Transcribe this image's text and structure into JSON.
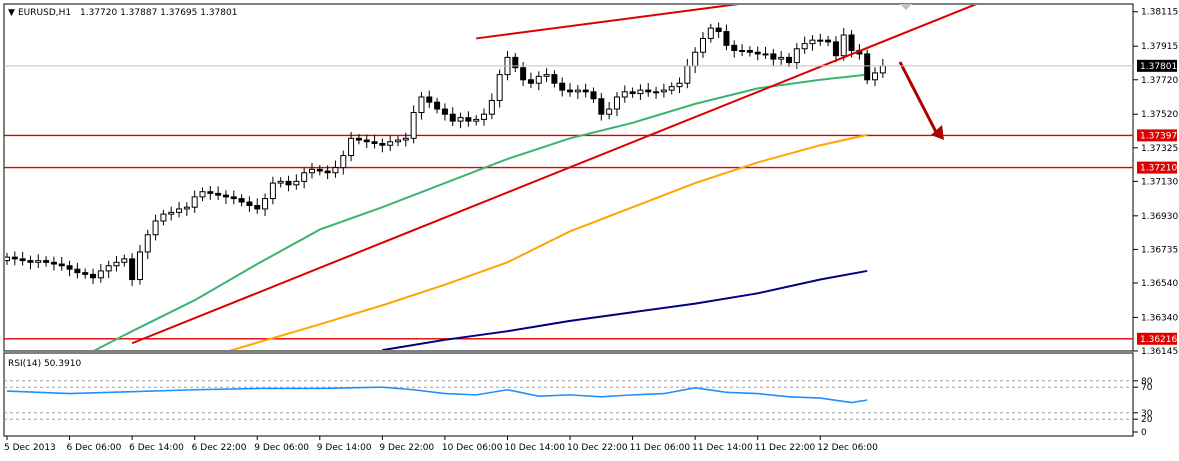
{
  "header": {
    "symbol": "EURUSD,H1",
    "ohlc": "1.37720 1.37887 1.37695 1.37801"
  },
  "rsi_header": "RSI(14) 50.3910",
  "colors": {
    "bull_candle": "#ffffff",
    "bear_candle": "#000000",
    "trendline": "#dd0000",
    "horizontal_level": "#dd0000",
    "ma_fast": "#3cb371",
    "ma_mid": "#ffa500",
    "ma_slow": "#000080",
    "rsi_line": "#1e90ff",
    "arrow": "#aa0000"
  },
  "chart_data": [
    {
      "type": "line",
      "subtype": "candlestick",
      "ylim": [
        1.36145,
        1.3816
      ],
      "ytick_labels": [
        "1.38115",
        "1.37915",
        "1.37720",
        "1.37520",
        "1.37325",
        "1.37130",
        "1.36930",
        "1.36735",
        "1.36540",
        "1.36340",
        "1.36145"
      ],
      "ytick_values": [
        1.38115,
        1.37915,
        1.3772,
        1.3752,
        1.37325,
        1.3713,
        1.3693,
        1.36735,
        1.3654,
        1.3634,
        1.36145
      ],
      "current_price_label": "1.37801",
      "current_price": 1.37801,
      "levels": [
        {
          "label": "1.37397",
          "value": 1.37397
        },
        {
          "label": "1.37210",
          "value": 1.3721
        },
        {
          "label": "1.36216",
          "value": 1.36216
        }
      ],
      "xtick_labels": [
        "5 Dec 2013",
        "6 Dec 06:00",
        "6 Dec 14:00",
        "6 Dec 22:00",
        "9 Dec 06:00",
        "9 Dec 14:00",
        "9 Dec 22:00",
        "10 Dec 06:00",
        "10 Dec 14:00",
        "10 Dec 22:00",
        "11 Dec 06:00",
        "11 Dec 14:00",
        "11 Dec 22:00",
        "12 Dec 06:00"
      ],
      "xtick_index": [
        0,
        8,
        16,
        24,
        32,
        40,
        48,
        56,
        64,
        72,
        80,
        88,
        96,
        104
      ],
      "closes": [
        1.3669,
        1.3668,
        1.3667,
        1.3666,
        1.3667,
        1.3666,
        1.3665,
        1.3664,
        1.3662,
        1.366,
        1.3659,
        1.3657,
        1.3661,
        1.3664,
        1.3666,
        1.3668,
        1.3656,
        1.3672,
        1.3682,
        1.369,
        1.3694,
        1.3695,
        1.3697,
        1.3698,
        1.3704,
        1.3707,
        1.3706,
        1.3705,
        1.3704,
        1.3703,
        1.3701,
        1.3699,
        1.3697,
        1.3703,
        1.3712,
        1.3713,
        1.3711,
        1.3713,
        1.3718,
        1.372,
        1.3719,
        1.3718,
        1.3721,
        1.3728,
        1.3738,
        1.3737,
        1.3736,
        1.3735,
        1.3734,
        1.3736,
        1.3737,
        1.3738,
        1.3753,
        1.3762,
        1.3759,
        1.3755,
        1.3752,
        1.3748,
        1.375,
        1.3748,
        1.3749,
        1.3752,
        1.376,
        1.3775,
        1.3785,
        1.3779,
        1.3772,
        1.377,
        1.3774,
        1.3775,
        1.377,
        1.3766,
        1.3765,
        1.3766,
        1.3765,
        1.3761,
        1.3752,
        1.3755,
        1.3762,
        1.3765,
        1.3764,
        1.3766,
        1.3765,
        1.3765,
        1.3766,
        1.3768,
        1.377,
        1.378,
        1.3788,
        1.3796,
        1.3802,
        1.38,
        1.3792,
        1.3789,
        1.3789,
        1.3788,
        1.3787,
        1.3787,
        1.3784,
        1.3785,
        1.3782,
        1.379,
        1.3793,
        1.3795,
        1.3795,
        1.3794,
        1.3786,
        1.3798,
        1.3789,
        1.3787,
        1.3772,
        1.3776,
        1.378
      ],
      "moving_averages": [
        {
          "color": "#3cb371",
          "x_index": [
            0,
            10,
            16,
            24,
            32,
            40,
            48,
            56,
            64,
            72,
            80,
            88,
            96,
            104,
            110
          ],
          "values": [
            1.3605,
            1.3612,
            1.3626,
            1.3644,
            1.3665,
            1.3685,
            1.3698,
            1.3712,
            1.3726,
            1.3738,
            1.3747,
            1.3758,
            1.3767,
            1.3772,
            1.3775
          ]
        },
        {
          "color": "#ffa500",
          "x_index": [
            28,
            40,
            48,
            56,
            64,
            72,
            80,
            88,
            96,
            104,
            110
          ],
          "values": [
            1.3614,
            1.363,
            1.3641,
            1.3653,
            1.3666,
            1.3684,
            1.3698,
            1.3712,
            1.3724,
            1.3734,
            1.374
          ]
        },
        {
          "color": "#000080",
          "x_index": [
            48,
            56,
            64,
            72,
            80,
            88,
            96,
            104,
            110
          ],
          "values": [
            1.3615,
            1.3621,
            1.3626,
            1.3632,
            1.3637,
            1.3642,
            1.3648,
            1.3656,
            1.3661
          ]
        }
      ],
      "trendlines": [
        {
          "x_index": [
            16,
            130
          ],
          "values": [
            1.3619,
            1.3827
          ]
        },
        {
          "x_index": [
            60,
            107
          ],
          "values": [
            1.3796,
            1.3824
          ]
        }
      ]
    },
    {
      "type": "line",
      "title": "RSI(14) 50.3910",
      "ylim": [
        0,
        100
      ],
      "ytick_labels": [
        "80",
        "70",
        "30",
        "20",
        "0"
      ],
      "ytick_values": [
        80,
        70,
        30,
        20,
        0
      ],
      "x_index": [
        0,
        8,
        16,
        24,
        32,
        40,
        48,
        52,
        56,
        60,
        64,
        68,
        72,
        76,
        80,
        84,
        88,
        92,
        96,
        100,
        104,
        108,
        110
      ],
      "values": [
        64,
        60,
        63,
        66,
        68,
        68,
        70,
        66,
        60,
        58,
        66,
        56,
        58,
        55,
        58,
        60,
        69,
        62,
        60,
        55,
        53,
        46,
        50
      ]
    }
  ]
}
